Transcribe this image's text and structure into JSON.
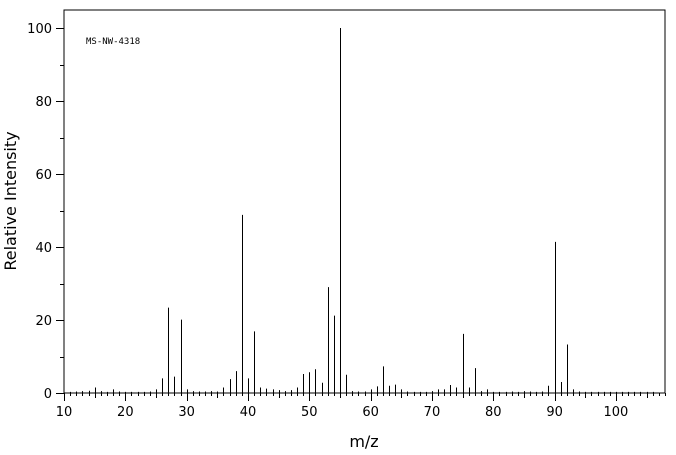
{
  "chart_data": {
    "type": "bar",
    "xlabel": "m/z",
    "ylabel": "Relative Intensity",
    "annotation": "MS-NW-4318",
    "xlim": [
      10,
      108
    ],
    "ylim": [
      0,
      100
    ],
    "x_ticks": [
      10,
      20,
      30,
      40,
      50,
      60,
      70,
      80,
      90,
      100
    ],
    "y_ticks": [
      0,
      20,
      40,
      60,
      80,
      100
    ],
    "grid": false,
    "series": [
      {
        "x": [
          11,
          12,
          13,
          14,
          15,
          16,
          17,
          18,
          19,
          20,
          21,
          22,
          23,
          24,
          25,
          26,
          27,
          28,
          29,
          30,
          31,
          32,
          33,
          34,
          35,
          36,
          37,
          38,
          39,
          40,
          41,
          42,
          43,
          44,
          45,
          46,
          47,
          48,
          49,
          50,
          51,
          52,
          53,
          54,
          55,
          56,
          57,
          58,
          59,
          60,
          61,
          62,
          63,
          64,
          65,
          66,
          67,
          68,
          69,
          70,
          71,
          72,
          73,
          74,
          75,
          76,
          77,
          78,
          79,
          80,
          81,
          82,
          83,
          84,
          85,
          86,
          87,
          88,
          89,
          90,
          91,
          92,
          93,
          94,
          95,
          96,
          97,
          98,
          99,
          100,
          101,
          102,
          103,
          104,
          105,
          106
        ],
        "values": [
          0.3,
          0.4,
          0.5,
          0.6,
          1.5,
          0.5,
          0.3,
          1.0,
          0.4,
          0.3,
          0.3,
          0.3,
          0.3,
          0.4,
          1.0,
          4.0,
          23.4,
          4.5,
          20.1,
          1.0,
          0.5,
          0.4,
          0.4,
          0.5,
          0.4,
          1.5,
          3.8,
          6.0,
          48.8,
          4.0,
          16.9,
          1.5,
          1.2,
          1.0,
          0.8,
          0.5,
          0.8,
          1.5,
          5.2,
          5.7,
          6.5,
          2.8,
          29.0,
          21.2,
          100,
          5.0,
          0.5,
          0.4,
          0.4,
          1.0,
          1.8,
          7.3,
          2.0,
          2.3,
          1.0,
          0.4,
          0.3,
          0.3,
          0.3,
          0.5,
          1.0,
          1.0,
          2.2,
          1.5,
          16.2,
          1.5,
          6.8,
          0.5,
          1.0,
          0.3,
          0.3,
          0.3,
          0.4,
          0.3,
          0.5,
          0.4,
          0.3,
          0.4,
          2.0,
          41.4,
          3.0,
          13.3,
          1.0,
          0.4,
          0.3,
          0.3,
          0.3,
          0.3,
          0.3,
          0.3,
          0.3,
          0.3,
          0.3,
          0.3,
          0.3,
          0.3
        ]
      }
    ]
  }
}
